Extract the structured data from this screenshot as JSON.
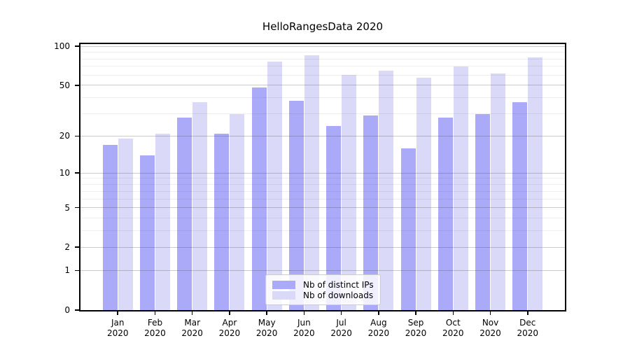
{
  "chart_data": {
    "type": "bar",
    "title": "HelloRangesData 2020",
    "year_label": "2020",
    "categories": [
      "Jan",
      "Feb",
      "Mar",
      "Apr",
      "May",
      "Jun",
      "Jul",
      "Aug",
      "Sep",
      "Oct",
      "Nov",
      "Dec"
    ],
    "series": [
      {
        "name": "Nb of distinct IPs",
        "color": "#aaaaf8",
        "values": [
          17,
          14,
          28,
          21,
          48,
          38,
          24,
          29,
          16,
          28,
          30,
          37
        ]
      },
      {
        "name": "Nb of downloads",
        "color": "#dadaf8",
        "values": [
          19,
          21,
          37,
          30,
          76,
          85,
          60,
          65,
          57,
          70,
          62,
          82
        ]
      }
    ],
    "xlabel": "",
    "ylabel": "",
    "yscale": "symlog",
    "ylim": [
      0,
      104
    ],
    "y_major_ticks": [
      100,
      50,
      20,
      10,
      5,
      2,
      1,
      0
    ],
    "y_minor_gridlines": [
      3,
      4,
      6,
      7,
      8,
      9,
      30,
      40,
      60,
      70,
      80,
      90
    ],
    "grid": true,
    "legend_position": "lower center"
  }
}
